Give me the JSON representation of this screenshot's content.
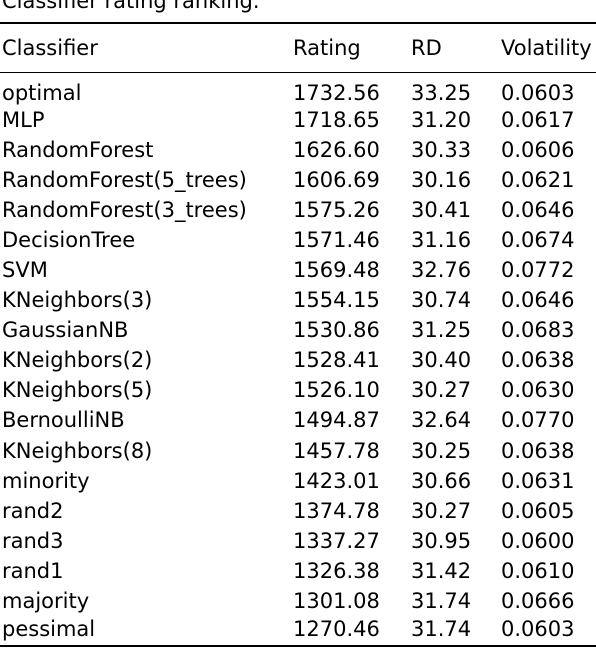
{
  "caption": "Classifier rating ranking.",
  "table": {
    "columns": [
      "Classifier",
      "Rating",
      "RD",
      "Volatility"
    ],
    "rows": [
      {
        "classifier": "optimal",
        "rating": "1732.56",
        "rd": "33.25",
        "volatility": "0.0603"
      },
      {
        "classifier": "MLP",
        "rating": "1718.65",
        "rd": "31.20",
        "volatility": "0.0617"
      },
      {
        "classifier": "RandomForest",
        "rating": "1626.60",
        "rd": "30.33",
        "volatility": "0.0606"
      },
      {
        "classifier": "RandomForest(5_trees)",
        "rating": "1606.69",
        "rd": "30.16",
        "volatility": "0.0621"
      },
      {
        "classifier": "RandomForest(3_trees)",
        "rating": "1575.26",
        "rd": "30.41",
        "volatility": "0.0646"
      },
      {
        "classifier": "DecisionTree",
        "rating": "1571.46",
        "rd": "31.16",
        "volatility": "0.0674"
      },
      {
        "classifier": "SVM",
        "rating": "1569.48",
        "rd": "32.76",
        "volatility": "0.0772"
      },
      {
        "classifier": "KNeighbors(3)",
        "rating": "1554.15",
        "rd": "30.74",
        "volatility": "0.0646"
      },
      {
        "classifier": "GaussianNB",
        "rating": "1530.86",
        "rd": "31.25",
        "volatility": "0.0683"
      },
      {
        "classifier": "KNeighbors(2)",
        "rating": "1528.41",
        "rd": "30.40",
        "volatility": "0.0638"
      },
      {
        "classifier": "KNeighbors(5)",
        "rating": "1526.10",
        "rd": "30.27",
        "volatility": "0.0630"
      },
      {
        "classifier": "BernoulliNB",
        "rating": "1494.87",
        "rd": "32.64",
        "volatility": "0.0770"
      },
      {
        "classifier": "KNeighbors(8)",
        "rating": "1457.78",
        "rd": "30.25",
        "volatility": "0.0638"
      },
      {
        "classifier": "minority",
        "rating": "1423.01",
        "rd": "30.66",
        "volatility": "0.0631"
      },
      {
        "classifier": "rand2",
        "rating": "1374.78",
        "rd": "30.27",
        "volatility": "0.0605"
      },
      {
        "classifier": "rand3",
        "rating": "1337.27",
        "rd": "30.95",
        "volatility": "0.0600"
      },
      {
        "classifier": "rand1",
        "rating": "1326.38",
        "rd": "31.42",
        "volatility": "0.0610"
      },
      {
        "classifier": "majority",
        "rating": "1301.08",
        "rd": "31.74",
        "volatility": "0.0666"
      },
      {
        "classifier": "pessimal",
        "rating": "1270.46",
        "rd": "31.74",
        "volatility": "0.0603"
      }
    ]
  }
}
